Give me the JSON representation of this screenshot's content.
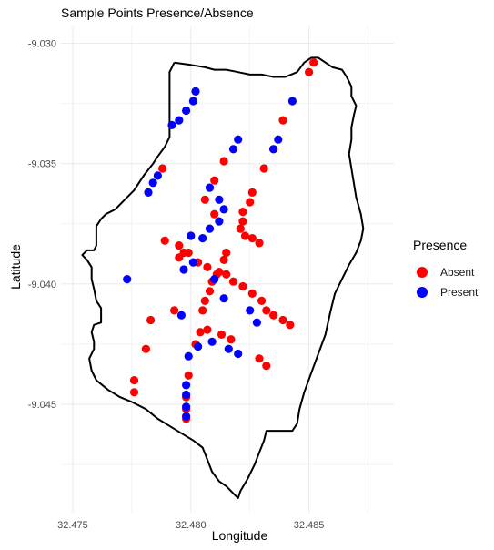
{
  "chart_data": {
    "type": "scatter",
    "title": "Sample Points Presence/Absence",
    "xlabel": "Longitude",
    "ylabel": "Latitude",
    "xlim": [
      32.4745,
      32.4886
    ],
    "ylim": [
      -9.0495,
      -9.0293
    ],
    "x_ticks": [
      32.475,
      32.48,
      32.485
    ],
    "x_tick_labels": [
      "32.475",
      "32.480",
      "32.485"
    ],
    "y_ticks": [
      -9.03,
      -9.035,
      -9.04,
      -9.045
    ],
    "y_tick_labels": [
      "-9.030",
      "-9.035",
      "-9.040",
      "-9.045"
    ],
    "grid": true,
    "legend": {
      "title": "Presence",
      "position": "right"
    },
    "colors": {
      "Absent": "#ff0000",
      "Present": "#0000ff",
      "boundary": "#000000",
      "grid": "#ebebeb"
    },
    "boundary": [
      [
        32.4793,
        -9.0308
      ],
      [
        32.48,
        -9.0309
      ],
      [
        32.4806,
        -9.031
      ],
      [
        32.481,
        -9.0311
      ],
      [
        32.4815,
        -9.0311
      ],
      [
        32.482,
        -9.0312
      ],
      [
        32.4825,
        -9.0313
      ],
      [
        32.483,
        -9.0313
      ],
      [
        32.4835,
        -9.0314
      ],
      [
        32.484,
        -9.0314
      ],
      [
        32.4845,
        -9.0312
      ],
      [
        32.4848,
        -9.0308
      ],
      [
        32.4851,
        -9.0306
      ],
      [
        32.4854,
        -9.0306
      ],
      [
        32.4857,
        -9.0308
      ],
      [
        32.486,
        -9.031
      ],
      [
        32.4864,
        -9.0311
      ],
      [
        32.4866,
        -9.0314
      ],
      [
        32.4868,
        -9.0318
      ],
      [
        32.4868,
        -9.0322
      ],
      [
        32.487,
        -9.0326
      ],
      [
        32.4869,
        -9.033
      ],
      [
        32.4868,
        -9.0335
      ],
      [
        32.4868,
        -9.034
      ],
      [
        32.4867,
        -9.0346
      ],
      [
        32.4868,
        -9.0352
      ],
      [
        32.4869,
        -9.0358
      ],
      [
        32.487,
        -9.0364
      ],
      [
        32.4872,
        -9.0371
      ],
      [
        32.4873,
        -9.0377
      ],
      [
        32.4872,
        -9.0382
      ],
      [
        32.487,
        -9.0387
      ],
      [
        32.4867,
        -9.0392
      ],
      [
        32.4864,
        -9.0398
      ],
      [
        32.4861,
        -9.0404
      ],
      [
        32.4859,
        -9.0412
      ],
      [
        32.4857,
        -9.0421
      ],
      [
        32.4854,
        -9.0429
      ],
      [
        32.4851,
        -9.0437
      ],
      [
        32.4848,
        -9.0445
      ],
      [
        32.4846,
        -9.0452
      ],
      [
        32.4845,
        -9.0458
      ],
      [
        32.4843,
        -9.0461
      ],
      [
        32.4839,
        -9.0461
      ],
      [
        32.4835,
        -9.0461
      ],
      [
        32.4832,
        -9.0461
      ],
      [
        32.4831,
        -9.0465
      ],
      [
        32.4829,
        -9.047
      ],
      [
        32.4827,
        -9.0475
      ],
      [
        32.4824,
        -9.0481
      ],
      [
        32.4821,
        -9.0486
      ],
      [
        32.482,
        -9.0489
      ],
      [
        32.4818,
        -9.0487
      ],
      [
        32.4815,
        -9.0484
      ],
      [
        32.4812,
        -9.0482
      ],
      [
        32.4809,
        -9.0478
      ],
      [
        32.4807,
        -9.0473
      ],
      [
        32.4805,
        -9.0468
      ],
      [
        32.4801,
        -9.0465
      ],
      [
        32.4796,
        -9.0462
      ],
      [
        32.4791,
        -9.0459
      ],
      [
        32.4786,
        -9.0456
      ],
      [
        32.4781,
        -9.0452
      ],
      [
        32.4775,
        -9.0449
      ],
      [
        32.477,
        -9.0447
      ],
      [
        32.4765,
        -9.0444
      ],
      [
        32.476,
        -9.044
      ],
      [
        32.4758,
        -9.0436
      ],
      [
        32.4757,
        -9.0431
      ],
      [
        32.4759,
        -9.0427
      ],
      [
        32.4759,
        -9.0424
      ],
      [
        32.4758,
        -9.042
      ],
      [
        32.4759,
        -9.0417
      ],
      [
        32.4762,
        -9.0416
      ],
      [
        32.4762,
        -9.041
      ],
      [
        32.476,
        -9.0407
      ],
      [
        32.4759,
        -9.0402
      ],
      [
        32.4758,
        -9.0398
      ],
      [
        32.4758,
        -9.0393
      ],
      [
        32.4756,
        -9.039
      ],
      [
        32.4754,
        -9.0388
      ],
      [
        32.4756,
        -9.0386
      ],
      [
        32.4759,
        -9.0386
      ],
      [
        32.476,
        -9.0384
      ],
      [
        32.476,
        -9.038
      ],
      [
        32.476,
        -9.0376
      ],
      [
        32.4762,
        -9.0373
      ],
      [
        32.4764,
        -9.0371
      ],
      [
        32.4768,
        -9.0369
      ],
      [
        32.4772,
        -9.0365
      ],
      [
        32.4776,
        -9.0361
      ],
      [
        32.478,
        -9.0355
      ],
      [
        32.4784,
        -9.035
      ],
      [
        32.4786,
        -9.0347
      ],
      [
        32.4789,
        -9.0343
      ],
      [
        32.4791,
        -9.0339
      ],
      [
        32.4791,
        -9.0333
      ],
      [
        32.4791,
        -9.0326
      ],
      [
        32.4791,
        -9.0318
      ],
      [
        32.4791,
        -9.0312
      ],
      [
        32.4793,
        -9.0308
      ]
    ],
    "series": [
      {
        "name": "Absent",
        "points": [
          [
            32.4852,
            -9.0308
          ],
          [
            32.485,
            -9.0312
          ],
          [
            32.4839,
            -9.0332
          ],
          [
            32.4835,
            -9.0344
          ],
          [
            32.4831,
            -9.0352
          ],
          [
            32.4826,
            -9.0362
          ],
          [
            32.4825,
            -9.0366
          ],
          [
            32.4822,
            -9.037
          ],
          [
            32.4822,
            -9.0374
          ],
          [
            32.4821,
            -9.0377
          ],
          [
            32.4823,
            -9.038
          ],
          [
            32.4826,
            -9.0381
          ],
          [
            32.4829,
            -9.0383
          ],
          [
            32.4814,
            -9.0349
          ],
          [
            32.481,
            -9.0357
          ],
          [
            32.4806,
            -9.0365
          ],
          [
            32.481,
            -9.0371
          ],
          [
            32.4815,
            -9.0387
          ],
          [
            32.4814,
            -9.039
          ],
          [
            32.4812,
            -9.0395
          ],
          [
            32.4809,
            -9.0399
          ],
          [
            32.4808,
            -9.0403
          ],
          [
            32.4806,
            -9.0407
          ],
          [
            32.4805,
            -9.0411
          ],
          [
            32.4804,
            -9.042
          ],
          [
            32.4802,
            -9.0425
          ],
          [
            32.4799,
            -9.0438
          ],
          [
            32.4798,
            -9.0447
          ],
          [
            32.4798,
            -9.0452
          ],
          [
            32.4798,
            -9.0456
          ],
          [
            32.4788,
            -9.0352
          ],
          [
            32.4789,
            -9.0382
          ],
          [
            32.4795,
            -9.0384
          ],
          [
            32.4797,
            -9.0387
          ],
          [
            32.4795,
            -9.0389
          ],
          [
            32.4799,
            -9.0387
          ],
          [
            32.4803,
            -9.0391
          ],
          [
            32.4807,
            -9.0393
          ],
          [
            32.4811,
            -9.0396
          ],
          [
            32.4815,
            -9.0396
          ],
          [
            32.4818,
            -9.0399
          ],
          [
            32.4822,
            -9.0401
          ],
          [
            32.4826,
            -9.0404
          ],
          [
            32.483,
            -9.0407
          ],
          [
            32.4832,
            -9.0411
          ],
          [
            32.4835,
            -9.0413
          ],
          [
            32.4839,
            -9.0415
          ],
          [
            32.4842,
            -9.0417
          ],
          [
            32.4793,
            -9.0411
          ],
          [
            32.4783,
            -9.0415
          ],
          [
            32.4781,
            -9.0427
          ],
          [
            32.4776,
            -9.044
          ],
          [
            32.4776,
            -9.0445
          ],
          [
            32.4807,
            -9.0419
          ],
          [
            32.4813,
            -9.0421
          ],
          [
            32.4817,
            -9.0423
          ],
          [
            32.4829,
            -9.0431
          ],
          [
            32.4832,
            -9.0434
          ]
        ]
      },
      {
        "name": "Present",
        "points": [
          [
            32.4802,
            -9.032
          ],
          [
            32.4801,
            -9.0324
          ],
          [
            32.4798,
            -9.0328
          ],
          [
            32.4795,
            -9.0332
          ],
          [
            32.4792,
            -9.0334
          ],
          [
            32.4843,
            -9.0324
          ],
          [
            32.4837,
            -9.034
          ],
          [
            32.4835,
            -9.0344
          ],
          [
            32.482,
            -9.034
          ],
          [
            32.4818,
            -9.0344
          ],
          [
            32.4786,
            -9.0355
          ],
          [
            32.4784,
            -9.0358
          ],
          [
            32.4782,
            -9.0362
          ],
          [
            32.4808,
            -9.036
          ],
          [
            32.4812,
            -9.0365
          ],
          [
            32.4814,
            -9.0369
          ],
          [
            32.4812,
            -9.0374
          ],
          [
            32.4808,
            -9.0377
          ],
          [
            32.4805,
            -9.0381
          ],
          [
            32.48,
            -9.038
          ],
          [
            32.4801,
            -9.0391
          ],
          [
            32.4797,
            -9.0394
          ],
          [
            32.481,
            -9.0398
          ],
          [
            32.4814,
            -9.0406
          ],
          [
            32.4773,
            -9.0398
          ],
          [
            32.4796,
            -9.0413
          ],
          [
            32.4799,
            -9.043
          ],
          [
            32.4803,
            -9.0426
          ],
          [
            32.4809,
            -9.0424
          ],
          [
            32.4816,
            -9.0427
          ],
          [
            32.482,
            -9.0429
          ],
          [
            32.4798,
            -9.0442
          ],
          [
            32.4798,
            -9.0446
          ],
          [
            32.4798,
            -9.0451
          ],
          [
            32.4798,
            -9.0455
          ],
          [
            32.4825,
            -9.0411
          ],
          [
            32.4828,
            -9.0416
          ]
        ]
      }
    ]
  }
}
